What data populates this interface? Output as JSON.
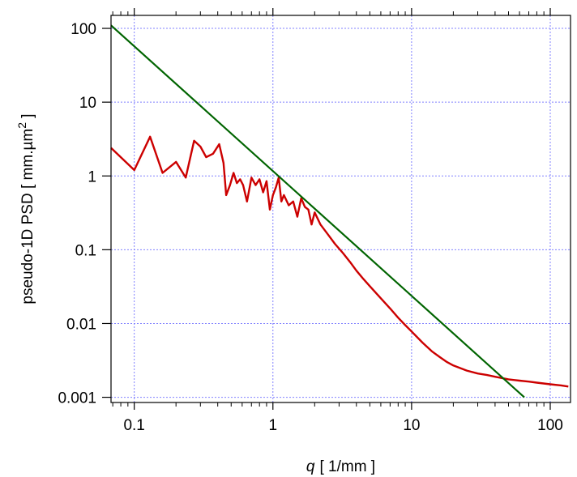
{
  "chart_data": {
    "type": "line",
    "x_scale": "log",
    "y_scale": "log",
    "xlim": [
      0.068,
      140
    ],
    "ylim": [
      0.00085,
      150
    ],
    "grid": true,
    "xlabel_var": "q",
    "xlabel_unit": "[ 1/mm ]",
    "ylabel_main": "pseudo-1D PSD  [ mm.µm",
    "ylabel_sup": "2",
    "ylabel_end": " ]",
    "x_ticks": [
      0.1,
      1,
      10,
      100
    ],
    "x_tick_labels": [
      "0.1",
      "1",
      "10",
      "100"
    ],
    "y_ticks": [
      100,
      10,
      1,
      0.1,
      0.01,
      0.001
    ],
    "y_tick_labels": [
      "100",
      "10",
      "1",
      "0.1",
      "0.01",
      "0.001"
    ],
    "colors": {
      "measured": "#cc0000",
      "fit": "#006400",
      "grid": "#8080ff"
    },
    "series": [
      {
        "style": "measured",
        "x": [
          0.068,
          0.1,
          0.13,
          0.16,
          0.2,
          0.235,
          0.27,
          0.3,
          0.33,
          0.37,
          0.41,
          0.44,
          0.46,
          0.49,
          0.52,
          0.55,
          0.58,
          0.61,
          0.65,
          0.7,
          0.75,
          0.8,
          0.85,
          0.9,
          0.95,
          1.0,
          1.05,
          1.1,
          1.15,
          1.2,
          1.3,
          1.4,
          1.5,
          1.6,
          1.7,
          1.8,
          1.9,
          2.0,
          2.2,
          2.5,
          2.8,
          3.2,
          3.6,
          4.0,
          4.5,
          5.0,
          6.0,
          7.0,
          8.0,
          9.0,
          10,
          12,
          14,
          16,
          18,
          20,
          25,
          30,
          35,
          40,
          50,
          60,
          70,
          80,
          100,
          120,
          135
        ],
        "y": [
          2.4,
          1.2,
          3.4,
          1.1,
          1.55,
          0.95,
          3.0,
          2.5,
          1.8,
          2.0,
          2.7,
          1.5,
          0.55,
          0.75,
          1.1,
          0.8,
          0.9,
          0.75,
          0.45,
          0.95,
          0.75,
          0.9,
          0.6,
          0.85,
          0.35,
          0.55,
          0.7,
          0.95,
          0.45,
          0.55,
          0.4,
          0.45,
          0.28,
          0.5,
          0.38,
          0.35,
          0.22,
          0.32,
          0.22,
          0.16,
          0.12,
          0.09,
          0.068,
          0.052,
          0.04,
          0.032,
          0.022,
          0.016,
          0.012,
          0.0095,
          0.0078,
          0.0055,
          0.0042,
          0.0035,
          0.003,
          0.0027,
          0.0023,
          0.0021,
          0.002,
          0.0019,
          0.00175,
          0.00168,
          0.00163,
          0.00158,
          0.0015,
          0.00145,
          0.0014
        ]
      },
      {
        "style": "fit",
        "x": [
          0.068,
          65
        ],
        "y": [
          110,
          0.001
        ]
      }
    ]
  }
}
